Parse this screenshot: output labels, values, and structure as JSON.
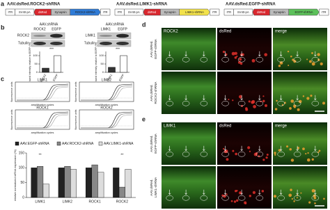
{
  "panel_a": {
    "label": "a",
    "constructs": [
      {
        "title": "AAV.dsRed.ROCK2-shRNA",
        "elements": [
          "ITR",
          "SV40-pA",
          "dsRed",
          "Synapsin",
          "ROCK2-shRNA",
          "ITR"
        ]
      },
      {
        "title": "AAV.dsRed.LIMK1-shRNA",
        "elements": [
          "ITR",
          "SV40-pA",
          "dsRed",
          "Synapsin",
          "LIMK1-shRNA",
          "ITR"
        ]
      },
      {
        "title": "AAV.dsRed.EGFP-shRNA",
        "elements": [
          "ITR",
          "SV40-pA",
          "dsRed",
          "Synapsin",
          "EGFP-shRNA",
          "ITR"
        ]
      }
    ]
  },
  "panel_b": {
    "label": "b",
    "header": "AAV.shRNA",
    "blots": [
      {
        "lanes": [
          "ROCK2",
          "EGFP"
        ],
        "rows": [
          "ROCK2",
          "Tubulin"
        ],
        "chart": {
          "type": "bar",
          "categories": [
            "ROCK2",
            "EGFP"
          ],
          "values": [
            25,
            100
          ],
          "colors": [
            "#333333",
            "#ffffff"
          ],
          "ylim": [
            0,
            125
          ],
          "yticks": [
            0,
            50,
            100
          ],
          "y_label": "band intensity relative to EGFP (%)",
          "significance": "***"
        }
      },
      {
        "lanes": [
          "LIMK1",
          "EGFP"
        ],
        "rows": [
          "LIMK1",
          "Tubulin"
        ],
        "chart": {
          "type": "bar",
          "categories": [
            "LIMK1",
            "EGFP"
          ],
          "values": [
            30,
            100
          ],
          "colors": [
            "#333333",
            "#ffffff"
          ],
          "ylim": [
            0,
            125
          ],
          "yticks": [
            0,
            50,
            100
          ],
          "y_label": "band intensity relative to EGFP (%)",
          "significance": "***"
        }
      }
    ]
  },
  "panel_c": {
    "label": "c",
    "plots": [
      {
        "title": "LIMK1"
      },
      {
        "title": "LIMK2"
      },
      {
        "title": "ROCK1"
      },
      {
        "title": "ROCK2"
      }
    ],
    "x_label": "amplification cycles",
    "y_label": "fluorescence units",
    "chart_data": {
      "type": "bar",
      "categories": [
        "LIMK1",
        "LIMK2",
        "ROCK1",
        "ROCK2"
      ],
      "series": [
        {
          "name": "AAV.EGFP-shRNA",
          "color": "#222222",
          "values": [
            100,
            100,
            100,
            100
          ]
        },
        {
          "name": "AAV.ROCK2-shRNA",
          "color": "#888888",
          "values": [
            105,
            105,
            110,
            35
          ]
        },
        {
          "name": "AAV.LIMK1-shRNA",
          "color": "#dddddd",
          "values": [
            45,
            95,
            85,
            95
          ]
        }
      ],
      "ylim": [
        0,
        150
      ],
      "yticks": [
        0,
        50,
        100,
        150
      ],
      "y_label": "relative normalized mRNA expression (%)",
      "annotations": [
        {
          "category": 0,
          "text": "**"
        },
        {
          "category": 3,
          "text": "**"
        }
      ]
    }
  },
  "panel_d": {
    "label": "d",
    "columns": [
      "ROCK2",
      "dsRed",
      "merge"
    ],
    "rows": [
      [
        "AAV.dsRed.",
        "EGFP-shRNA"
      ],
      [
        "AAV.dsRed.",
        "ROCK2-shRNA"
      ]
    ]
  },
  "panel_e": {
    "label": "e",
    "columns": [
      "LIMK1",
      "dsRed",
      "merge"
    ],
    "rows": [
      [
        "AAV.dsRed.",
        "EGFP-shRNA"
      ],
      [
        "AAV.dsRed.",
        "LIMK1-shRNA"
      ]
    ]
  }
}
